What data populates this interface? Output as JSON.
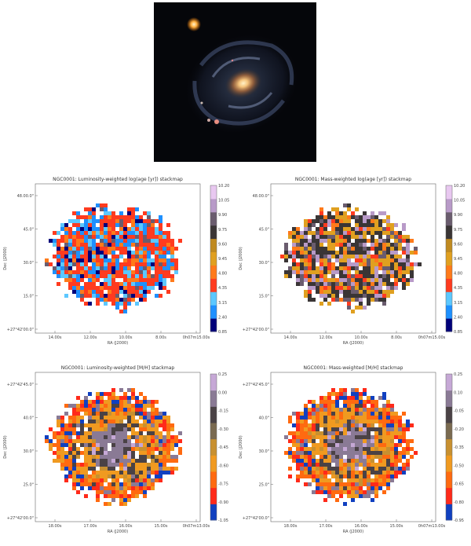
{
  "figure": {
    "panels": [
      {
        "id": "lw-age",
        "title": "NGC0001: Luminosity-weighted log(age [yr]) stackmap",
        "ylabel": "Dec (J2000)",
        "xlabel": "RA (J2000)",
        "yticks": [
          "48.00.0\"",
          "45.0\"",
          "30.0\"",
          "15.0\"",
          "+27°42'00.0\""
        ],
        "xticks": [
          "14.00s",
          "12.00s",
          "10.00s",
          "8.00s",
          "0h07m15.00s"
        ],
        "cbar_ticks": [
          "10.20",
          "10.05",
          "9.90",
          "9.75",
          "9.60",
          "9.45",
          "4.80",
          "4.35",
          "3.15",
          "2.40",
          "0.85"
        ],
        "colormap": "age"
      },
      {
        "id": "mw-age",
        "title": "NGC0001: Mass-weighted log(age [yr]) stackmap",
        "ylabel": "Dec (J2000)",
        "xlabel": "RA (J2000)",
        "yticks": [
          "48.00.0\"",
          "45.0\"",
          "30.0\"",
          "15.0\"",
          "+27°42'00.0\""
        ],
        "xticks": [
          "14.00s",
          "12.00s",
          "10.00s",
          "8.00s",
          "0h07m15.00s"
        ],
        "cbar_ticks": [
          "10.20",
          "10.05",
          "9.90",
          "9.75",
          "9.60",
          "9.45",
          "4.80",
          "4.35",
          "3.15",
          "2.40",
          "0.85"
        ],
        "colormap": "age"
      },
      {
        "id": "lw-mh",
        "title": "NGC0001: Luminosity-weighted [M/H] stackmap",
        "ylabel": "Dec (J2000)",
        "xlabel": "RA (J2000)",
        "yticks": [
          "+27°42'45.0\"",
          "40.0\"",
          "30.0\"",
          "25.0\"",
          "+27°42'00.0\""
        ],
        "xticks": [
          "18.00s",
          "17.00s",
          "16.00s",
          "15.00s",
          "0h07m13.00s"
        ],
        "cbar_ticks": [
          "0.25",
          "0.00",
          "-0.15",
          "-0.30",
          "-0.45",
          "-0.60",
          "-0.75",
          "-0.90",
          "-1.05"
        ],
        "colormap": "metal"
      },
      {
        "id": "mw-mh",
        "title": "NGC0001: Mass-weighted [M/H] stackmap",
        "ylabel": "Dec (J2000)",
        "xlabel": "RA (J2000)",
        "yticks": [
          "+27°42'45.0\"",
          "40.0\"",
          "30.0\"",
          "25.0\"",
          "+27°42'00.0\""
        ],
        "xticks": [
          "18.00s",
          "17.00s",
          "16.00s",
          "15.00s",
          "0h07m13.00s"
        ],
        "cbar_ticks": [
          "0.25",
          "0.10",
          "-0.05",
          "-0.20",
          "-0.35",
          "-0.50",
          "-0.65",
          "-0.80",
          "-0.95"
        ],
        "colormap": "metal"
      }
    ],
    "colors": {
      "age_scale": [
        "#00007a",
        "#1e90ff",
        "#5cc8ff",
        "#ff3b1f",
        "#ff7a1a",
        "#e0a020",
        "#c08a20",
        "#3a3535",
        "#6a5c6e",
        "#b89ac8",
        "#e8c8f0"
      ],
      "metal_scale": [
        "#1040c0",
        "#ff2a1a",
        "#ff6a10",
        "#f09a20",
        "#c89030",
        "#7a6a50",
        "#4a4245",
        "#8a7a95",
        "#c6a8d6"
      ]
    }
  }
}
